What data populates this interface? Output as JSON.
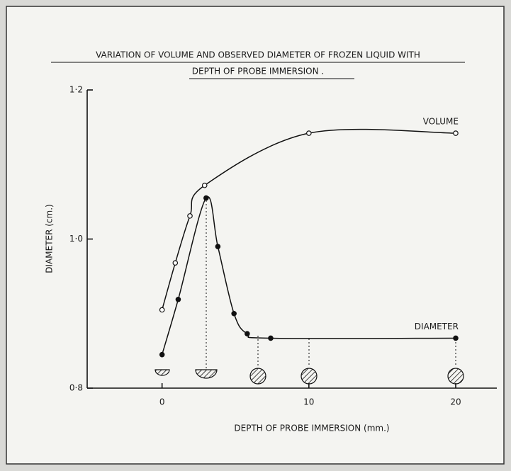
{
  "chart_data": {
    "type": "line",
    "title": [
      "VARIATION OF VOLUME AND OBSERVED DIAMETER OF FROZEN LIQUID WITH",
      "DEPTH OF PROBE IMMERSION ."
    ],
    "x_label": "DEPTH OF PROBE IMMERSION (mm.)",
    "y_label": "DIAMETER (cm.)",
    "xlim": [
      -5.1,
      22.8
    ],
    "ylim": [
      0.8,
      1.2
    ],
    "xticks": [
      0,
      10,
      20
    ],
    "yticks": [
      {
        "value": 0.8,
        "label": "0·8"
      },
      {
        "value": 1.0,
        "label": "1·0"
      },
      {
        "value": 1.2,
        "label": "1·2"
      }
    ],
    "series": [
      {
        "name": "VOLUME",
        "color": "#111111",
        "marker": "open",
        "x": [
          0,
          0.9,
          1.9,
          2.9,
          10,
          20
        ],
        "values": [
          0.905,
          0.968,
          1.031,
          1.072,
          1.142,
          1.142
        ]
      },
      {
        "name": "DIAMETER",
        "color": "#111111",
        "marker": "filled",
        "x": [
          0,
          1.1,
          3,
          3.8,
          4.9,
          5.8,
          7.4,
          20
        ],
        "values": [
          0.845,
          0.919,
          1.055,
          0.99,
          0.9,
          0.873,
          0.867,
          0.867
        ]
      }
    ]
  }
}
